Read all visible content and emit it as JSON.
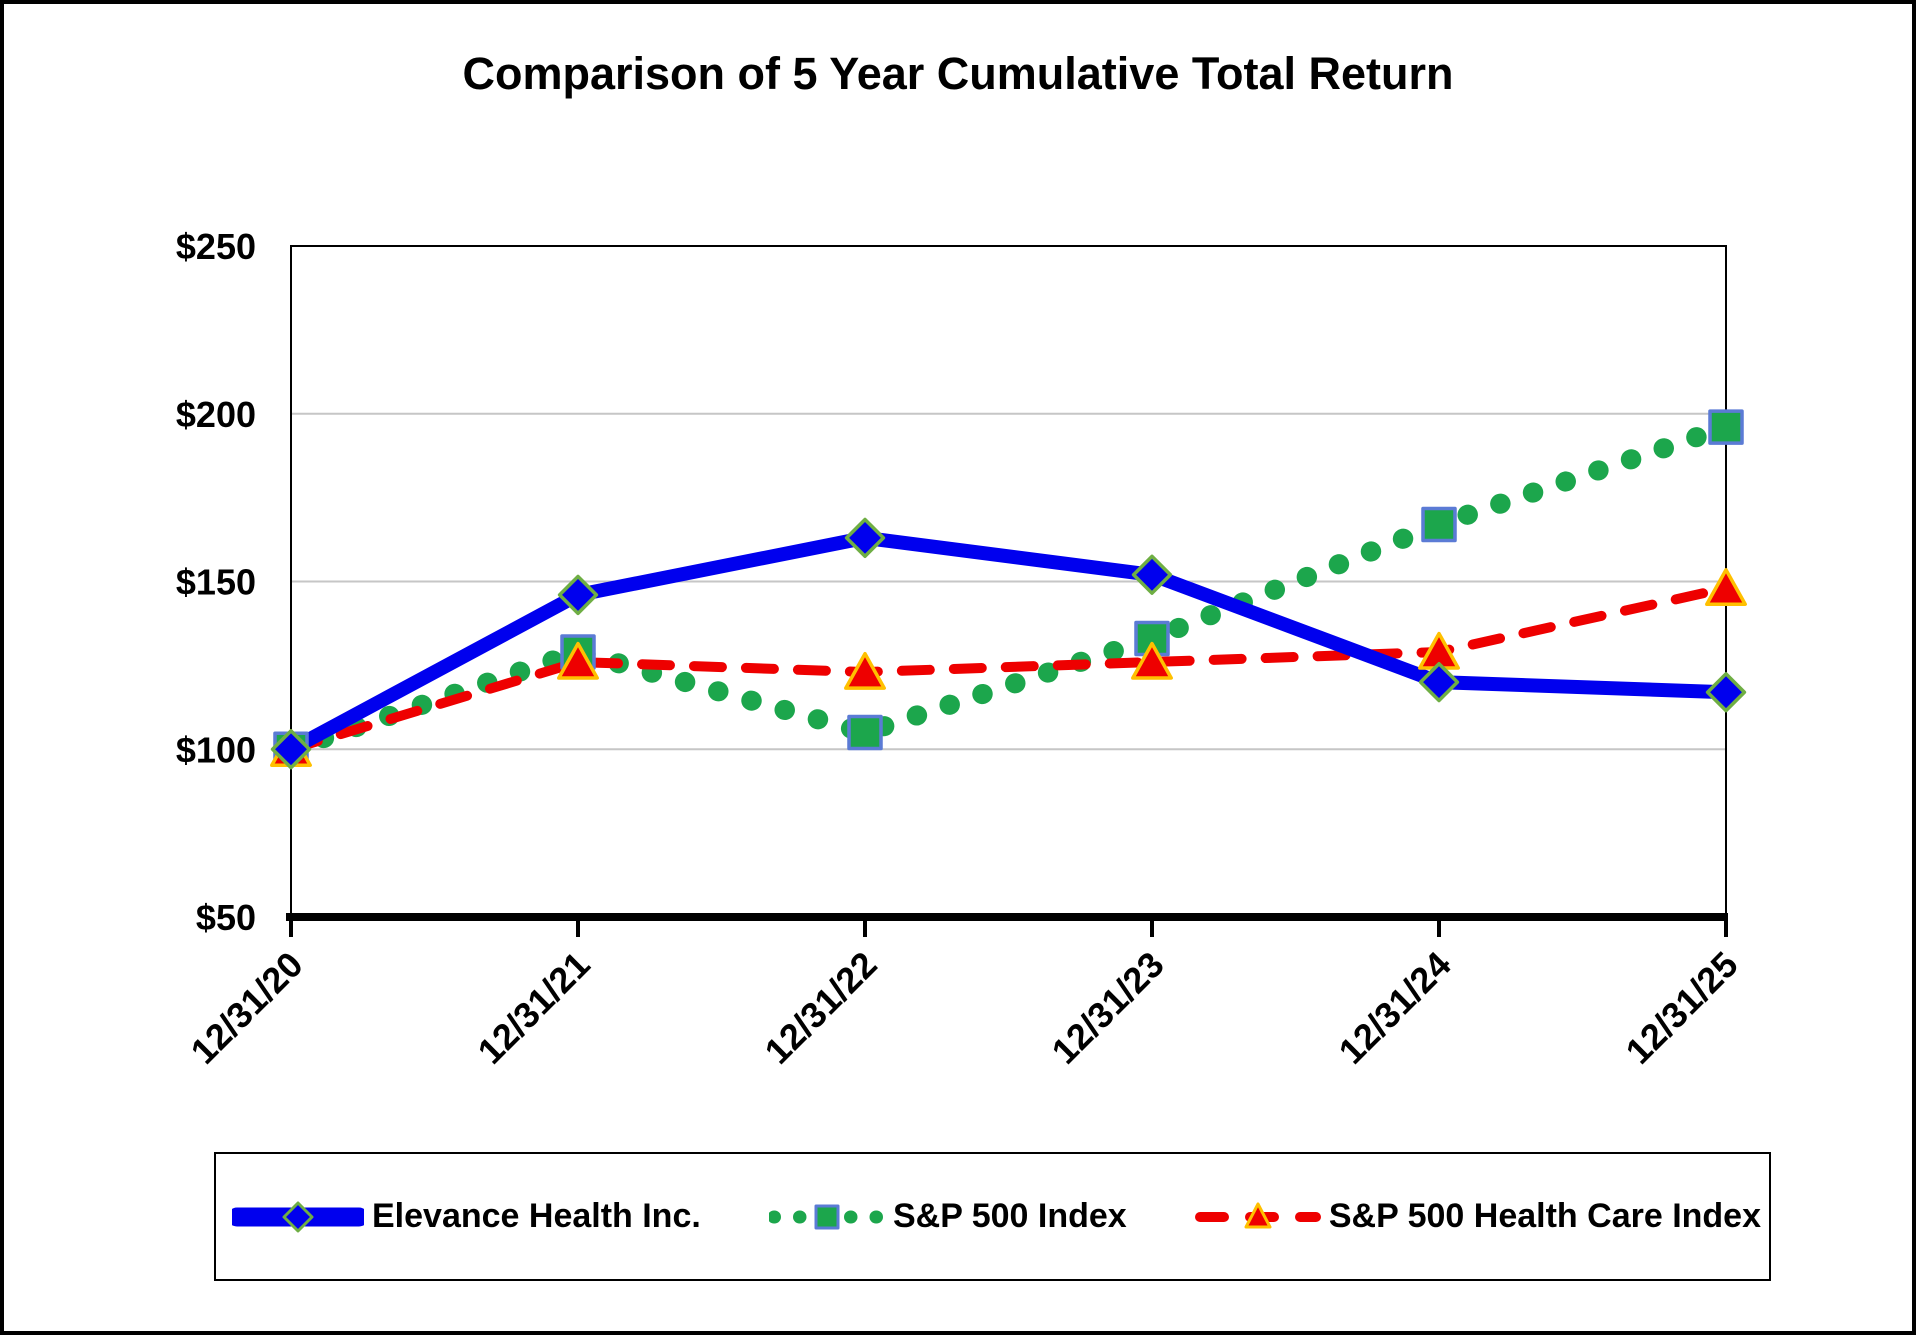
{
  "title": "Comparison of 5 Year Cumulative Total Return",
  "chart_data": {
    "type": "line",
    "categories": [
      "12/31/20",
      "12/31/21",
      "12/31/22",
      "12/31/23",
      "12/31/24",
      "12/31/25"
    ],
    "series": [
      {
        "name": "Elevance Health Inc.",
        "values": [
          100,
          146,
          163,
          152,
          120,
          117
        ],
        "color": "#0000EE",
        "line_style": "solid",
        "marker": "diamond",
        "marker_fill": "#0000EE",
        "marker_stroke": "#6FAE44"
      },
      {
        "name": "S&P 500 Index",
        "values": [
          100,
          129,
          105,
          133,
          167,
          196
        ],
        "color": "#1CA64C",
        "line_style": "dotted",
        "marker": "square",
        "marker_fill": "#1CA64C",
        "marker_stroke": "#5B7BD5"
      },
      {
        "name": "S&P 500 Health Care Index",
        "values": [
          100,
          126,
          123,
          126,
          129,
          148
        ],
        "color": "#EE0000",
        "line_style": "dashed",
        "marker": "triangle",
        "marker_fill": "#EE0000",
        "marker_stroke": "#FFC000"
      }
    ],
    "ylim": [
      50,
      250
    ],
    "yticks": [
      50,
      100,
      150,
      200,
      250
    ],
    "ytick_labels": [
      "$50",
      "$100",
      "$150",
      "$200",
      "$250"
    ],
    "xlabel": "",
    "ylabel": "",
    "grid": "horizontal",
    "legend_position": "bottom"
  },
  "colors": {
    "grid": "#C6C6C6",
    "axis": "#000000",
    "background": "#FFFFFF"
  }
}
